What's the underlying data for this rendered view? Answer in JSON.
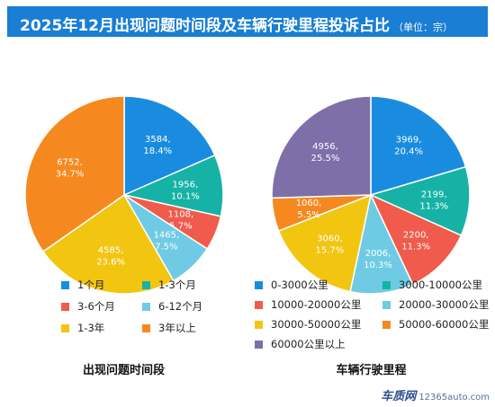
{
  "header": {
    "title": "2025年12月出现问题时间段及车辆行驶里程投诉占比",
    "unit": "（单位：宗）",
    "background": "#1a7ed4"
  },
  "chart_data": [
    {
      "type": "pie",
      "xlabel": "出现问题时间段",
      "legend_position": "bottom",
      "slices": [
        {
          "label": "1个月",
          "value": 3584,
          "percent": "18.4%",
          "color": "#1a8ce0"
        },
        {
          "label": "1-3个月",
          "value": 1956,
          "percent": "10.1%",
          "color": "#17b2a6"
        },
        {
          "label": "3-6个月",
          "value": 1108,
          "percent": "5.7%",
          "color": "#f05b4b"
        },
        {
          "label": "6-12个月",
          "value": 1465,
          "percent": "7.5%",
          "color": "#6fcbe3"
        },
        {
          "label": "1-3年",
          "value": 4585,
          "percent": "23.6%",
          "color": "#f2c511"
        },
        {
          "label": "3年以上",
          "value": 6752,
          "percent": "34.7%",
          "color": "#f5891f"
        }
      ]
    },
    {
      "type": "pie",
      "xlabel": "车辆行驶里程",
      "legend_position": "bottom",
      "slices": [
        {
          "label": "0-3000公里",
          "value": 3969,
          "percent": "20.4%",
          "color": "#1a8ce0"
        },
        {
          "label": "3000-10000公里",
          "value": 2199,
          "percent": "11.3%",
          "color": "#17b2a6"
        },
        {
          "label": "10000-20000公里",
          "value": 2200,
          "percent": "11.3%",
          "color": "#f05b4b"
        },
        {
          "label": "20000-30000公里",
          "value": 2006,
          "percent": "10.3%",
          "color": "#6fcbe3"
        },
        {
          "label": "30000-50000公里",
          "value": 3060,
          "percent": "15.7%",
          "color": "#f2c511"
        },
        {
          "label": "50000-60000公里",
          "value": 1060,
          "percent": "5.5%",
          "color": "#f5891f"
        },
        {
          "label": "60000公里以上",
          "value": 4956,
          "percent": "25.5%",
          "color": "#7e6fa8"
        }
      ]
    }
  ],
  "watermark": {
    "brand": "车质网",
    "site": "12365auto.com"
  }
}
